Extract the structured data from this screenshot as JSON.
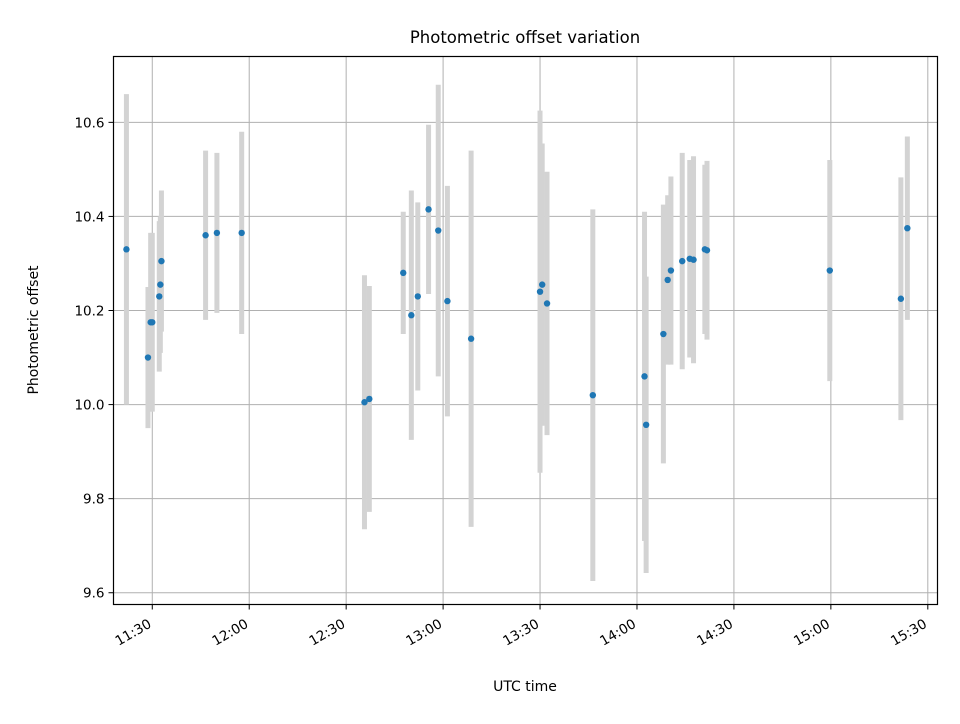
{
  "chart_data": {
    "type": "scatter",
    "title": "Photometric offset variation",
    "xlabel": "UTC time",
    "ylabel": "Photometric offset",
    "xlim": [
      "11:18",
      "15:33"
    ],
    "ylim": [
      9.575,
      10.74
    ],
    "x_ticks": [
      "11:30",
      "12:00",
      "12:30",
      "13:00",
      "13:30",
      "14:00",
      "14:30",
      "15:00",
      "15:30"
    ],
    "y_ticks": [
      "9.6",
      "9.8",
      "10.0",
      "10.2",
      "10.4",
      "10.6"
    ],
    "grid": true,
    "colors": {
      "points": "#1f77b4",
      "errorbars": "#d3d3d3",
      "grid": "#b0b0b0"
    },
    "points": [
      {
        "x": "11:22:00",
        "y": 10.33,
        "yerr": 0.33
      },
      {
        "x": "11:28:40",
        "y": 10.1,
        "yerr": 0.15
      },
      {
        "x": "11:29:30",
        "y": 10.175,
        "yerr": 0.19
      },
      {
        "x": "11:30:00",
        "y": 10.175,
        "yerr": 0.19
      },
      {
        "x": "11:32:10",
        "y": 10.23,
        "yerr": 0.16
      },
      {
        "x": "11:32:30",
        "y": 10.255,
        "yerr": 0.145
      },
      {
        "x": "11:32:50",
        "y": 10.305,
        "yerr": 0.15
      },
      {
        "x": "11:46:30",
        "y": 10.36,
        "yerr": 0.18
      },
      {
        "x": "11:50:00",
        "y": 10.365,
        "yerr": 0.17
      },
      {
        "x": "11:57:40",
        "y": 10.365,
        "yerr": 0.215
      },
      {
        "x": "12:35:40",
        "y": 10.005,
        "yerr": 0.27
      },
      {
        "x": "12:37:10",
        "y": 10.012,
        "yerr": 0.24
      },
      {
        "x": "12:47:40",
        "y": 10.28,
        "yerr": 0.13
      },
      {
        "x": "12:50:10",
        "y": 10.19,
        "yerr": 0.265
      },
      {
        "x": "12:52:10",
        "y": 10.23,
        "yerr": 0.2
      },
      {
        "x": "12:55:30",
        "y": 10.415,
        "yerr": 0.18
      },
      {
        "x": "12:58:30",
        "y": 10.37,
        "yerr": 0.31
      },
      {
        "x": "13:01:20",
        "y": 10.22,
        "yerr": 0.245
      },
      {
        "x": "13:08:40",
        "y": 10.14,
        "yerr": 0.4
      },
      {
        "x": "13:30:00",
        "y": 10.24,
        "yerr": 0.385
      },
      {
        "x": "13:30:40",
        "y": 10.255,
        "yerr": 0.3
      },
      {
        "x": "13:32:10",
        "y": 10.215,
        "yerr": 0.28
      },
      {
        "x": "13:46:20",
        "y": 10.02,
        "yerr": 0.395
      },
      {
        "x": "14:02:20",
        "y": 10.06,
        "yerr": 0.35
      },
      {
        "x": "14:02:50",
        "y": 9.957,
        "yerr": 0.315
      },
      {
        "x": "14:08:10",
        "y": 10.15,
        "yerr": 0.275
      },
      {
        "x": "14:09:30",
        "y": 10.265,
        "yerr": 0.18
      },
      {
        "x": "14:10:30",
        "y": 10.285,
        "yerr": 0.2
      },
      {
        "x": "14:14:00",
        "y": 10.305,
        "yerr": 0.23
      },
      {
        "x": "14:16:20",
        "y": 10.31,
        "yerr": 0.21
      },
      {
        "x": "14:17:30",
        "y": 10.308,
        "yerr": 0.22
      },
      {
        "x": "14:21:00",
        "y": 10.33,
        "yerr": 0.18
      },
      {
        "x": "14:21:40",
        "y": 10.328,
        "yerr": 0.19
      },
      {
        "x": "14:59:40",
        "y": 10.285,
        "yerr": 0.235
      },
      {
        "x": "15:21:40",
        "y": 10.225,
        "yerr": 0.258
      },
      {
        "x": "15:23:40",
        "y": 10.375,
        "yerr": 0.195
      }
    ]
  }
}
